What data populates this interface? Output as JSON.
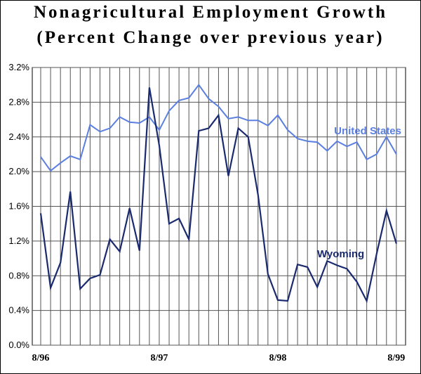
{
  "chart_data": {
    "type": "line",
    "title": "Nonagricultural Employment Growth",
    "subtitle": "(Percent Change over previous year)",
    "ylim": [
      0,
      3.2
    ],
    "y_ticks": [
      "0.0%",
      "0.4%",
      "0.8%",
      "1.2%",
      "1.6%",
      "2.0%",
      "2.4%",
      "2.8%",
      "3.2%"
    ],
    "x_ticks": [
      {
        "index": 0,
        "label": "8/96"
      },
      {
        "index": 12,
        "label": "8/97"
      },
      {
        "index": 24,
        "label": "8/98"
      },
      {
        "index": 36,
        "label": "8/99"
      }
    ],
    "grid": true,
    "colors": {
      "united_states": "#5b7fe0",
      "wyoming": "#1a2a6e"
    },
    "series": [
      {
        "name": "United States",
        "values": [
          2.17,
          2.01,
          2.1,
          2.18,
          2.14,
          2.54,
          2.46,
          2.5,
          2.63,
          2.57,
          2.56,
          2.63,
          2.48,
          2.7,
          2.82,
          2.85,
          3.0,
          2.84,
          2.75,
          2.61,
          2.63,
          2.59,
          2.59,
          2.53,
          2.65,
          2.48,
          2.38,
          2.35,
          2.34,
          2.24,
          2.35,
          2.29,
          2.34,
          2.14,
          2.2,
          2.4,
          2.2
        ]
      },
      {
        "name": "Wyoming",
        "values": [
          1.52,
          0.66,
          0.95,
          1.77,
          0.65,
          0.77,
          0.81,
          1.22,
          1.08,
          1.58,
          1.09,
          2.97,
          2.3,
          1.4,
          1.46,
          1.22,
          2.47,
          2.5,
          2.65,
          1.95,
          2.5,
          2.4,
          1.73,
          0.82,
          0.52,
          0.51,
          0.93,
          0.9,
          0.67,
          0.97,
          0.92,
          0.88,
          0.73,
          0.51,
          1.05,
          1.55,
          1.17
        ]
      }
    ]
  }
}
